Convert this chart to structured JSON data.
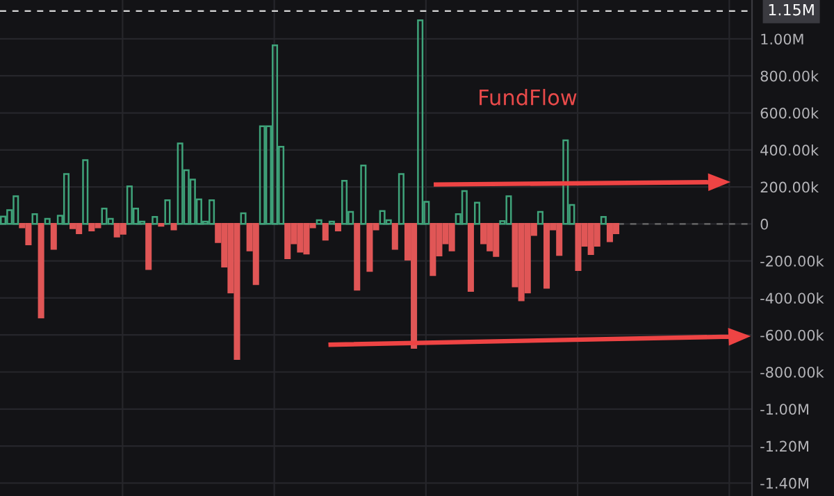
{
  "chart_data": {
    "type": "bar",
    "annotations": [
      "FundFlow"
    ],
    "categories": [
      null,
      null,
      null,
      null,
      null,
      null,
      null,
      null,
      null,
      null,
      null,
      null,
      null,
      null,
      null,
      null,
      null,
      null,
      null,
      null,
      null,
      null,
      null,
      null,
      null,
      null,
      null,
      null,
      null,
      null,
      null,
      null,
      null,
      null,
      null,
      null,
      null,
      null,
      null,
      null,
      null,
      null,
      null,
      null,
      null,
      null,
      null,
      null,
      null,
      null,
      null,
      null,
      null,
      null,
      null,
      null,
      null,
      null,
      null,
      null,
      null,
      null,
      null,
      null,
      null,
      null,
      null,
      null,
      null,
      null,
      null,
      null,
      null,
      null,
      null,
      null,
      null,
      null,
      null,
      null,
      null,
      null,
      null,
      null,
      null,
      null,
      null,
      null,
      null,
      null,
      null,
      null,
      null,
      null,
      null,
      null,
      null,
      null,
      null,
      null,
      null,
      null,
      null,
      null,
      null,
      null,
      null,
      null,
      null,
      null,
      null,
      null,
      null,
      null,
      null,
      null,
      null,
      null,
      null
    ],
    "values": [
      40000,
      75000,
      150000,
      -18000,
      -110000,
      53000,
      -505000,
      28000,
      -135000,
      45000,
      270000,
      -23000,
      -50000,
      345000,
      -35000,
      -18000,
      83000,
      28000,
      -68000,
      -53000,
      203000,
      83000,
      13000,
      -244000,
      38000,
      -10000,
      128000,
      -30000,
      435000,
      290000,
      240000,
      133000,
      13000,
      128000,
      -98000,
      -230000,
      -370000,
      -730000,
      58000,
      -143000,
      -325000,
      528000,
      528000,
      965000,
      417000,
      -185000,
      -105000,
      -150000,
      -160000,
      -18000,
      20000,
      -85000,
      13000,
      -35000,
      233000,
      65000,
      -355000,
      316000,
      -254000,
      -30000,
      70000,
      20000,
      -135000,
      270000,
      -193000,
      -670000,
      1100000,
      120000,
      -276000,
      -170000,
      -105000,
      -143000,
      53000,
      178000,
      -362000,
      115000,
      -105000,
      -143000,
      -173000,
      15000,
      150000,
      -337000,
      -412000,
      -370000,
      -60000,
      65000,
      -345000,
      -30000,
      -168000,
      452000,
      103000,
      -249000,
      -118000,
      -163000,
      -118000,
      38000,
      -93000,
      -50000,
      null,
      null,
      null,
      null,
      null,
      null,
      null,
      null,
      null,
      null,
      null,
      null,
      null,
      null,
      null,
      null,
      null,
      null,
      null,
      null,
      null
    ],
    "colors": [
      "#3fa37a",
      "#3fa37a",
      "#3fa37a",
      "#e05656",
      "#e05656",
      "#3fa37a",
      "#e05656",
      "#3fa37a",
      "#e05656",
      "#3fa37a",
      "#3fa37a",
      "#e05656",
      "#e05656",
      "#3fa37a",
      "#e05656",
      "#e05656",
      "#3fa37a",
      "#3fa37a",
      "#e05656",
      "#e05656",
      "#3fa37a",
      "#3fa37a",
      "#3fa37a",
      "#e05656",
      "#3fa37a",
      "#e05656",
      "#3fa37a",
      "#e05656",
      "#3fa37a",
      "#3fa37a",
      "#3fa37a",
      "#3fa37a",
      "#3fa37a",
      "#3fa37a",
      "#e05656",
      "#e05656",
      "#e05656",
      "#e05656",
      "#3fa37a",
      "#e05656",
      "#e05656",
      "#3fa37a",
      "#3fa37a",
      "#3fa37a",
      "#3fa37a",
      "#e05656",
      "#e05656",
      "#e05656",
      "#e05656",
      "#e05656",
      "#3fa37a",
      "#e05656",
      "#3fa37a",
      "#e05656",
      "#3fa37a",
      "#3fa37a",
      "#e05656",
      "#3fa37a",
      "#e05656",
      "#e05656",
      "#3fa37a",
      "#3fa37a",
      "#e05656",
      "#3fa37a",
      "#e05656",
      "#e05656",
      "#3fa37a",
      "#3fa37a",
      "#e05656",
      "#e05656",
      "#e05656",
      "#e05656",
      "#3fa37a",
      "#3fa37a",
      "#e05656",
      "#3fa37a",
      "#e05656",
      "#e05656",
      "#e05656",
      "#3fa37a",
      "#3fa37a",
      "#e05656",
      "#e05656",
      "#e05656",
      "#e05656",
      "#3fa37a",
      "#e05656",
      "#e05656",
      "#e05656",
      "#3fa37a",
      "#3fa37a",
      "#e05656",
      "#e05656",
      "#e05656",
      "#e05656",
      "#3fa37a",
      "#e05656",
      "#e05656",
      null,
      null,
      null,
      null,
      null,
      null,
      null,
      null,
      null,
      null,
      null,
      null,
      null,
      null,
      null,
      null,
      null,
      null,
      null,
      null,
      null
    ],
    "ylim": [
      -1470000,
      1210000
    ],
    "yticks": [
      {
        "value": -1400000,
        "label": "-1.40M"
      },
      {
        "value": -1200000,
        "label": "-1.20M"
      },
      {
        "value": -1000000,
        "label": "-1.00M"
      },
      {
        "value": -800000,
        "label": "-800.00k"
      },
      {
        "value": -600000,
        "label": "-600.00k"
      },
      {
        "value": -400000,
        "label": "-400.00k"
      },
      {
        "value": -200000,
        "label": "-200.00k"
      },
      0,
      {
        "value": 200000,
        "label": "200.00k"
      },
      {
        "value": 400000,
        "label": "400.00k"
      },
      {
        "value": 600000,
        "label": "600.00k"
      },
      {
        "value": 800000,
        "label": "800.00k"
      },
      {
        "value": 1000000,
        "label": "1.00M"
      }
    ],
    "ref_lines": [
      {
        "axis": "y",
        "value": 1150000,
        "label": "1.15M",
        "color": "#d8d8d8",
        "line_style": "dashed"
      },
      {
        "axis": "y",
        "value": 0,
        "label": null,
        "color": "#6a6a6a",
        "line_style": "dashed"
      }
    ],
    "grid": true
  }
}
